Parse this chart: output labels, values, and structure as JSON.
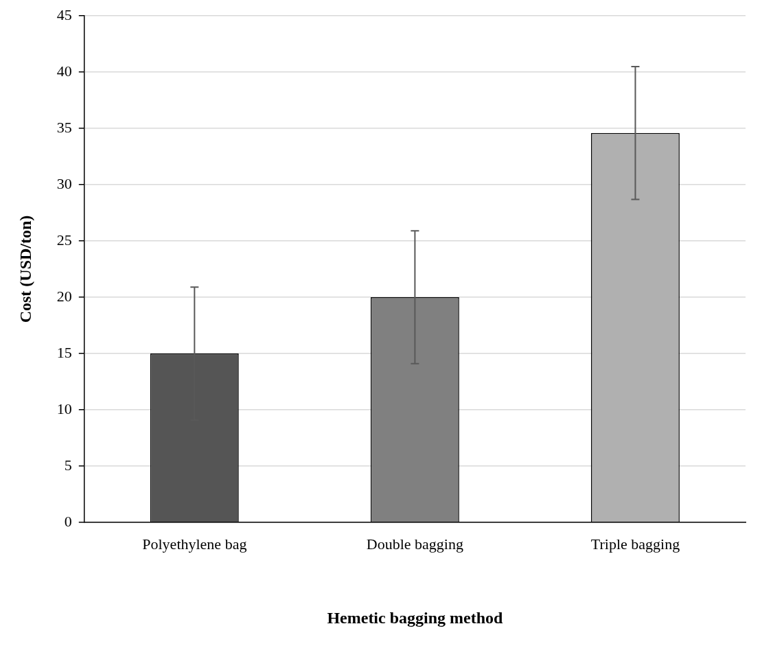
{
  "chart_data": {
    "type": "bar",
    "xlabel": "Hemetic bagging method",
    "ylabel": "Cost (USD/ton)",
    "categories": [
      "Polyethylene bag",
      "Double bagging",
      "Triple bagging"
    ],
    "values": [
      15,
      20,
      34.6
    ],
    "errors": [
      5.9,
      5.9,
      5.9
    ],
    "colors": [
      "#555555",
      "#808080",
      "#b0b0b0"
    ],
    "ylim": [
      0,
      45
    ],
    "yticks": [
      0,
      5,
      10,
      15,
      20,
      25,
      30,
      35,
      40,
      45
    ],
    "grid": "y",
    "legend": false
  }
}
